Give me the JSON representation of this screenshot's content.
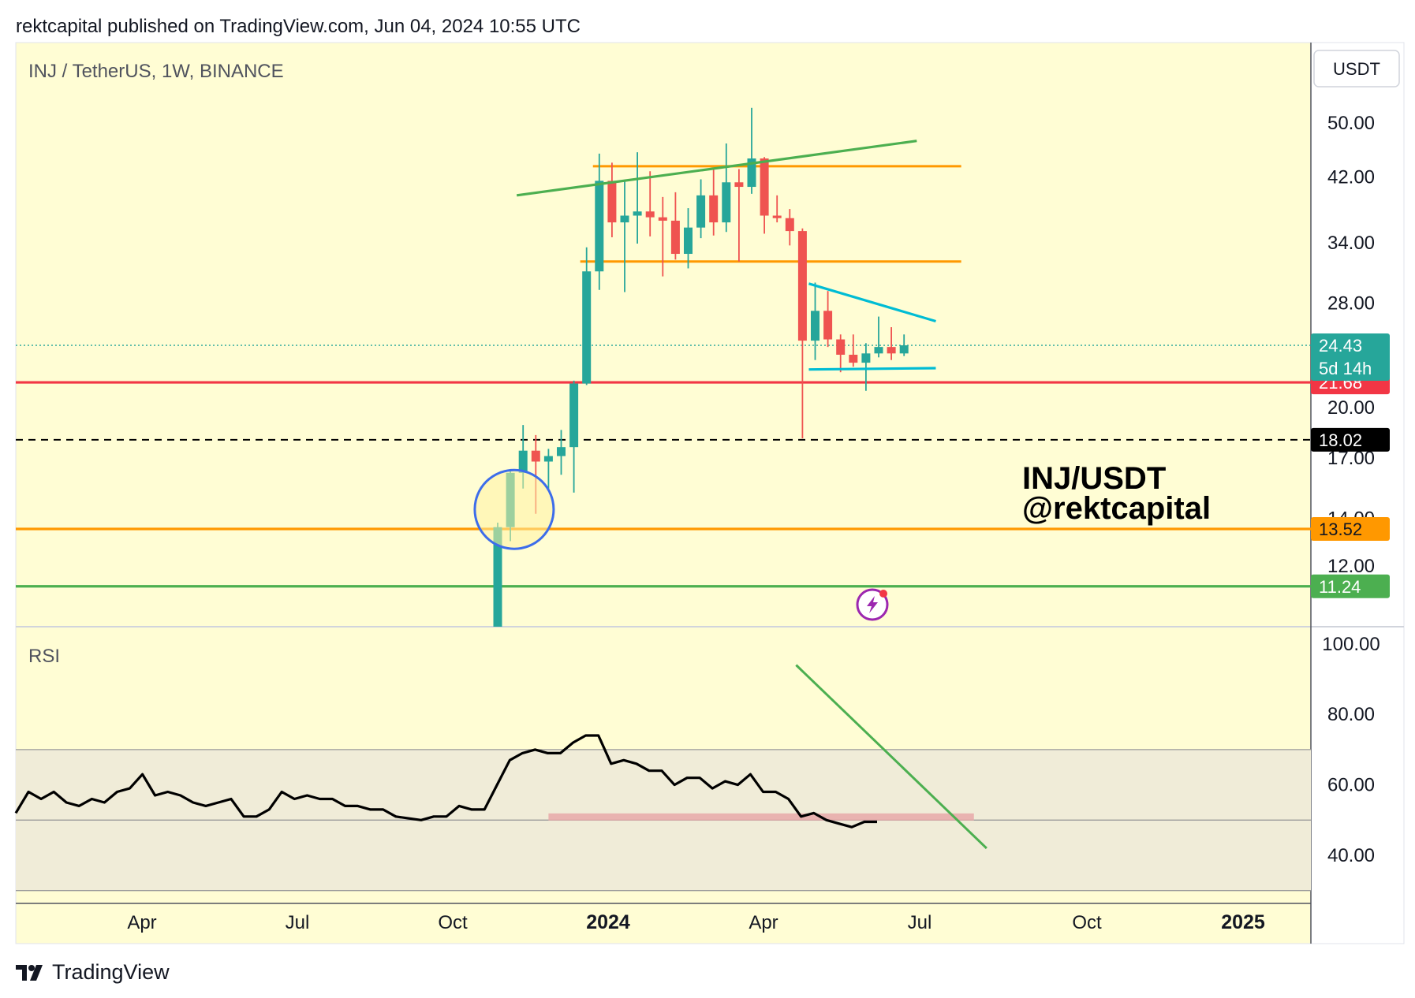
{
  "header": {
    "published": "rektcapital published on TradingView.com, Jun 04, 2024 10:55 UTC"
  },
  "footer": {
    "brand": "TradingView"
  },
  "colors": {
    "background": "#fffdd4",
    "up": "#26a69a",
    "down": "#ef5350",
    "support_red": "#f23645",
    "orange": "#ff9800",
    "green": "#4caf50",
    "cyan": "#00bcd4",
    "rsi_band": "#f0ecd8",
    "rsi_support": "#e8a9a9"
  },
  "chart_data": {
    "type": "candlestick",
    "title": "INJ / TetherUS, 1W, BINANCE",
    "currency": "USDT",
    "scale": "log",
    "price_axis_ticks": [
      "50.00",
      "42.00",
      "34.00",
      "28.00",
      "20.00",
      "17.00",
      "14.00",
      "12.00"
    ],
    "time_axis_ticks": [
      {
        "label": "Apr",
        "bold": false
      },
      {
        "label": "Jul",
        "bold": false
      },
      {
        "label": "Oct",
        "bold": false
      },
      {
        "label": "2024",
        "bold": true
      },
      {
        "label": "Apr",
        "bold": false
      },
      {
        "label": "Jul",
        "bold": false
      },
      {
        "label": "Oct",
        "bold": false
      },
      {
        "label": "2025",
        "bold": true
      }
    ],
    "candles": [
      {
        "t": 0,
        "o": 9.0,
        "h": 13.8,
        "l": 8.8,
        "c": 13.6
      },
      {
        "t": 1,
        "o": 13.6,
        "h": 16.4,
        "l": 13.0,
        "c": 16.2
      },
      {
        "t": 2,
        "o": 16.2,
        "h": 18.9,
        "l": 15.4,
        "c": 17.4
      },
      {
        "t": 3,
        "o": 17.4,
        "h": 18.3,
        "l": 14.2,
        "c": 16.8
      },
      {
        "t": 4,
        "o": 16.8,
        "h": 17.5,
        "l": 15.3,
        "c": 17.1
      },
      {
        "t": 5,
        "o": 17.1,
        "h": 18.6,
        "l": 16.1,
        "c": 17.6
      },
      {
        "t": 6,
        "o": 17.6,
        "h": 21.8,
        "l": 15.2,
        "c": 21.6
      },
      {
        "t": 7,
        "o": 21.6,
        "h": 33.5,
        "l": 21.5,
        "c": 31.0
      },
      {
        "t": 8,
        "o": 31.0,
        "h": 45.3,
        "l": 29.2,
        "c": 41.5
      },
      {
        "t": 9,
        "o": 41.5,
        "h": 44.0,
        "l": 34.6,
        "c": 36.3
      },
      {
        "t": 10,
        "o": 36.3,
        "h": 41.5,
        "l": 29.0,
        "c": 37.1
      },
      {
        "t": 11,
        "o": 37.1,
        "h": 45.5,
        "l": 33.9,
        "c": 37.6
      },
      {
        "t": 12,
        "o": 37.6,
        "h": 42.8,
        "l": 34.7,
        "c": 36.9
      },
      {
        "t": 13,
        "o": 36.9,
        "h": 39.4,
        "l": 30.5,
        "c": 36.5
      },
      {
        "t": 14,
        "o": 36.5,
        "h": 40.0,
        "l": 32.2,
        "c": 32.8
      },
      {
        "t": 15,
        "o": 32.8,
        "h": 38.0,
        "l": 31.3,
        "c": 35.7
      },
      {
        "t": 16,
        "o": 35.7,
        "h": 41.7,
        "l": 34.5,
        "c": 39.6
      },
      {
        "t": 17,
        "o": 39.6,
        "h": 43.0,
        "l": 34.8,
        "c": 36.3
      },
      {
        "t": 18,
        "o": 36.3,
        "h": 46.8,
        "l": 35.2,
        "c": 41.3
      },
      {
        "t": 19,
        "o": 41.3,
        "h": 43.1,
        "l": 32.0,
        "c": 40.7
      },
      {
        "t": 20,
        "o": 40.7,
        "h": 52.5,
        "l": 39.8,
        "c": 44.6
      },
      {
        "t": 21,
        "o": 44.6,
        "h": 44.8,
        "l": 35.0,
        "c": 37.1
      },
      {
        "t": 22,
        "o": 37.1,
        "h": 39.6,
        "l": 36.3,
        "c": 36.8
      },
      {
        "t": 23,
        "o": 36.8,
        "h": 37.9,
        "l": 33.7,
        "c": 35.3
      },
      {
        "t": 24,
        "o": 35.3,
        "h": 35.6,
        "l": 18.1,
        "c": 24.8
      },
      {
        "t": 25,
        "o": 24.8,
        "h": 29.9,
        "l": 23.3,
        "c": 27.3
      },
      {
        "t": 26,
        "o": 27.3,
        "h": 29.1,
        "l": 24.3,
        "c": 24.9
      },
      {
        "t": 27,
        "o": 24.9,
        "h": 25.3,
        "l": 22.4,
        "c": 23.7
      },
      {
        "t": 28,
        "o": 23.7,
        "h": 25.3,
        "l": 22.8,
        "c": 23.1
      },
      {
        "t": 29,
        "o": 23.1,
        "h": 24.6,
        "l": 21.1,
        "c": 23.8
      },
      {
        "t": 30,
        "o": 23.8,
        "h": 26.8,
        "l": 23.5,
        "c": 24.3
      },
      {
        "t": 31,
        "o": 24.3,
        "h": 25.9,
        "l": 23.3,
        "c": 23.8
      },
      {
        "t": 32,
        "o": 23.8,
        "h": 25.3,
        "l": 23.6,
        "c": 24.43
      }
    ],
    "last_price": {
      "value": "24.43",
      "countdown": "5d 14h"
    },
    "horizontal_levels": [
      {
        "value": 21.68,
        "label": "21.68",
        "color": "#f23645",
        "style": "solid"
      },
      {
        "value": 18.02,
        "label": "18.02",
        "color": "#000000",
        "style": "dashed"
      },
      {
        "value": 13.52,
        "label": "13.52",
        "color": "#ff9800",
        "style": "solid"
      },
      {
        "value": 11.24,
        "label": "11.24",
        "color": "#4caf50",
        "style": "solid"
      }
    ],
    "range_lines": [
      {
        "value": 43.5,
        "t_start": 7.5,
        "t_end": 36.5,
        "color": "#ff9800"
      },
      {
        "value": 32.0,
        "t_start": 6.5,
        "t_end": 36.5,
        "color": "#ff9800"
      }
    ],
    "trendlines": [
      {
        "t1": 1.5,
        "p1": 39.6,
        "t2": 33.0,
        "p2": 47.2,
        "color": "#4caf50"
      },
      {
        "t1": 24.5,
        "p1": 29.8,
        "t2": 34.5,
        "p2": 26.4,
        "color": "#00bcd4"
      },
      {
        "t1": 24.5,
        "p1": 22.6,
        "t2": 34.5,
        "p2": 22.7,
        "color": "#00bcd4"
      }
    ],
    "circle_highlight": {
      "t": 1.3,
      "p": 14.4
    },
    "annotation": [
      "INJ/USDT",
      "@rektcapital"
    ],
    "rsi": {
      "label": "RSI",
      "axis_ticks": [
        "100.00",
        "80.00",
        "60.00",
        "40.00"
      ],
      "band": [
        30,
        70
      ],
      "midline": 50,
      "values": [
        52,
        58,
        56,
        58,
        55,
        54,
        56,
        55,
        58,
        59,
        63,
        57,
        58,
        57,
        55,
        54,
        55,
        56,
        51,
        51,
        53,
        58,
        56,
        57,
        56,
        56,
        54,
        54,
        53,
        53,
        51,
        50.5,
        50,
        51,
        51,
        54,
        53,
        53,
        60,
        67,
        69,
        70,
        69,
        69,
        72,
        74,
        74,
        66,
        67,
        66,
        64,
        64,
        60,
        62,
        62,
        59,
        61,
        60,
        63,
        58,
        58,
        56,
        51,
        52,
        50,
        49,
        48,
        49.5,
        49.5
      ],
      "support_zone": {
        "value": 51,
        "t_start": 4.0,
        "t_end": 37.5
      },
      "trendline": {
        "t1": 23.5,
        "v1": 94,
        "t2": 38.5,
        "v2": 42
      }
    }
  }
}
